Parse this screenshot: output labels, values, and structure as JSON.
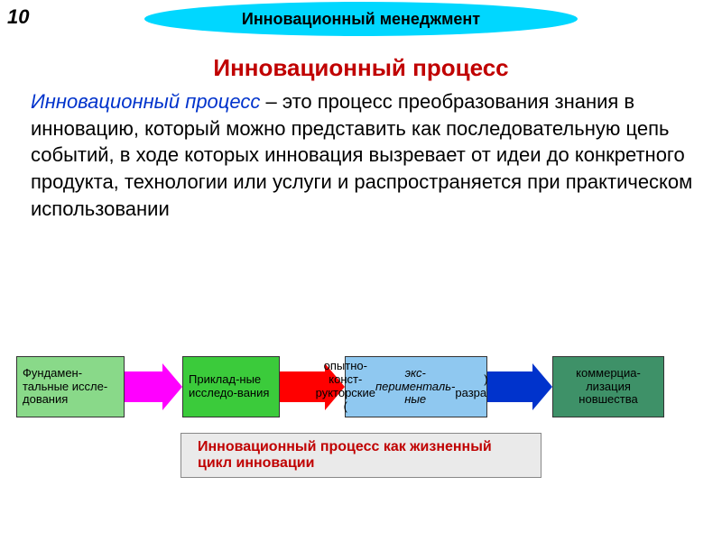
{
  "page_number": "10",
  "header": "Инновационный менеджмент",
  "title": "Инновационный процесс",
  "definition": {
    "term": "Инновационный процесс",
    "body": " – это процесс преобразования знания в инновацию, который можно представить как последовательную цепь событий, в ходе которых инновация вызревает от идеи до конкретного продукта, технологии или услуги и распространяется при практическом использовании"
  },
  "flow": {
    "boxes": [
      {
        "text": "Фундамен-тальные иссле-дования",
        "bg": "#89d989",
        "italic": false
      },
      {
        "text": "Приклад-ные исследо-вания",
        "bg": "#3bcb3b",
        "italic": false
      },
      {
        "html": "опытно-конст-рукторские (<i>экс-перименталь-ные</i>) разработки",
        "bg": "#8fc8f0",
        "italic": false
      },
      {
        "text": "коммерциа-лизация новшества",
        "bg": "#3e9168",
        "italic": false
      }
    ],
    "arrows": [
      {
        "shaft": "#ff00ff",
        "head": "#ff00ff",
        "shaft_w": 42
      },
      {
        "shaft": "#ff0000",
        "head": "#ff0000",
        "shaft_w": 50
      },
      {
        "shaft": "#0033cc",
        "head": "#0033cc",
        "shaft_w": 50
      }
    ]
  },
  "footer": "Инновационный процесс как жизненный цикл инновации",
  "colors": {
    "header_bg": "#00d7ff",
    "title_color": "#c00000",
    "term_color": "#0033cc",
    "footer_bg": "#eaeaea",
    "footer_text": "#c00000"
  },
  "fonts": {
    "title_size": 26,
    "body_size": 22,
    "box_size": 13,
    "footer_size": 16,
    "header_size": 18
  }
}
